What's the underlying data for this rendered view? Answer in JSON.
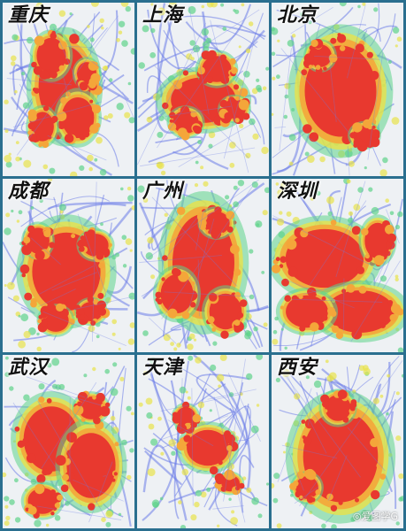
{
  "tiles": [
    {
      "city": "重庆"
    },
    {
      "city": "上海"
    },
    {
      "city": "北京"
    },
    {
      "city": "成都"
    },
    {
      "city": "广州"
    },
    {
      "city": "深圳"
    },
    {
      "city": "武汉"
    },
    {
      "city": "天津"
    },
    {
      "city": "西安"
    }
  ],
  "watermark": "◎爱图学G",
  "colors": {
    "hot": "#e8392f",
    "warm": "#f4a63a",
    "mid": "#e8e24a",
    "cool": "#5fd38a",
    "road": "#6b7ce8",
    "base": "#eef1f4",
    "border": "#2a6f8f"
  }
}
